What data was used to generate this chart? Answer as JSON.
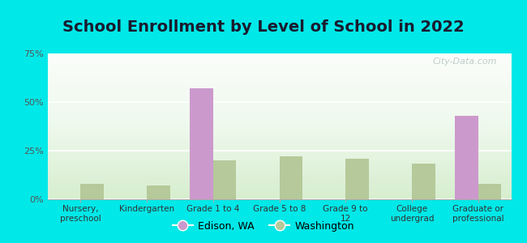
{
  "title": "School Enrollment by Level of School in 2022",
  "categories": [
    "Nursery,\npreschool",
    "Kindergarten",
    "Grade 1 to 4",
    "Grade 5 to 8",
    "Grade 9 to\n12",
    "College\nundergrad",
    "Graduate or\nprofessional"
  ],
  "edison_values": [
    0,
    0,
    57.0,
    0,
    0,
    0,
    43.0
  ],
  "washington_values": [
    8.0,
    7.0,
    20.0,
    22.0,
    21.0,
    18.5,
    8.0
  ],
  "edison_color": "#cc99cc",
  "washington_color": "#b5c99a",
  "background_outer": "#00e8e8",
  "ylim": [
    0,
    75
  ],
  "yticks": [
    0,
    25,
    50,
    75
  ],
  "ytick_labels": [
    "0%",
    "25%",
    "50%",
    "75%"
  ],
  "title_fontsize": 14,
  "legend_labels": [
    "Edison, WA",
    "Washington"
  ],
  "watermark": "City-Data.com",
  "bar_width": 0.35
}
